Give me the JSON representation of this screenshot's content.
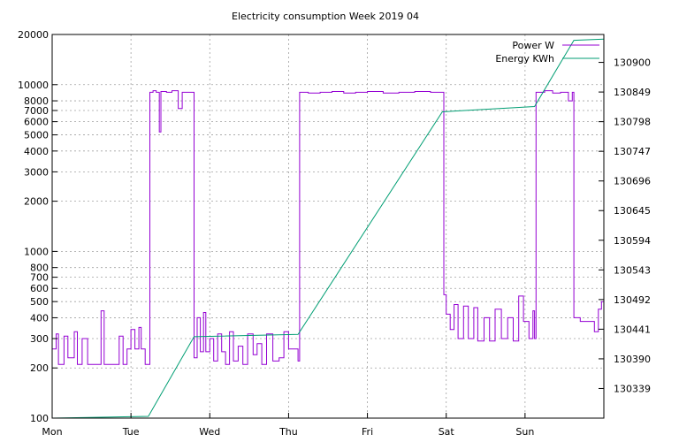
{
  "chart_data": {
    "type": "line",
    "title": "Electricity consumption Week 2019 04",
    "x": {
      "ticks": [
        "Mon",
        "Tue",
        "Wed",
        "Thu",
        "Fri",
        "Sat",
        "Sun"
      ],
      "range_days": [
        0,
        7
      ]
    },
    "y_left": {
      "scale": "log",
      "range": [
        100,
        20000
      ],
      "ticks": [
        100,
        200,
        300,
        400,
        500,
        600,
        700,
        800,
        1000,
        2000,
        3000,
        4000,
        5000,
        6000,
        7000,
        8000,
        10000,
        20000
      ]
    },
    "y_right": {
      "scale": "linear",
      "range": [
        130288,
        130948
      ],
      "ticks": [
        130339,
        130390,
        130441,
        130492,
        130543,
        130594,
        130645,
        130696,
        130747,
        130798,
        130849,
        130900
      ]
    },
    "grid": true,
    "legend_position": "top-right",
    "series": [
      {
        "name": "Power W",
        "axis": "left",
        "color": "#9400d3",
        "points": [
          [
            0.0,
            260
          ],
          [
            0.05,
            320
          ],
          [
            0.08,
            210
          ],
          [
            0.15,
            310
          ],
          [
            0.2,
            230
          ],
          [
            0.28,
            330
          ],
          [
            0.32,
            210
          ],
          [
            0.38,
            300
          ],
          [
            0.45,
            210
          ],
          [
            0.55,
            210
          ],
          [
            0.62,
            440
          ],
          [
            0.66,
            210
          ],
          [
            0.78,
            210
          ],
          [
            0.85,
            310
          ],
          [
            0.9,
            210
          ],
          [
            0.95,
            260
          ],
          [
            1.0,
            340
          ],
          [
            1.05,
            260
          ],
          [
            1.1,
            350
          ],
          [
            1.13,
            260
          ],
          [
            1.18,
            210
          ],
          [
            1.22,
            210
          ],
          [
            1.24,
            9000
          ],
          [
            1.28,
            9200
          ],
          [
            1.32,
            9000
          ],
          [
            1.36,
            5200
          ],
          [
            1.38,
            9100
          ],
          [
            1.45,
            9000
          ],
          [
            1.52,
            9200
          ],
          [
            1.6,
            7200
          ],
          [
            1.65,
            9000
          ],
          [
            1.72,
            9000
          ],
          [
            1.78,
            9000
          ],
          [
            1.8,
            230
          ],
          [
            1.84,
            400
          ],
          [
            1.88,
            250
          ],
          [
            1.92,
            430
          ],
          [
            1.95,
            250
          ],
          [
            2.0,
            300
          ],
          [
            2.05,
            220
          ],
          [
            2.1,
            320
          ],
          [
            2.15,
            250
          ],
          [
            2.2,
            210
          ],
          [
            2.25,
            330
          ],
          [
            2.3,
            220
          ],
          [
            2.36,
            270
          ],
          [
            2.42,
            210
          ],
          [
            2.48,
            320
          ],
          [
            2.55,
            240
          ],
          [
            2.6,
            280
          ],
          [
            2.66,
            210
          ],
          [
            2.72,
            320
          ],
          [
            2.8,
            220
          ],
          [
            2.88,
            230
          ],
          [
            2.94,
            330
          ],
          [
            3.0,
            260
          ],
          [
            3.08,
            260
          ],
          [
            3.12,
            220
          ],
          [
            3.14,
            9000
          ],
          [
            3.25,
            8900
          ],
          [
            3.4,
            9000
          ],
          [
            3.55,
            9100
          ],
          [
            3.7,
            8900
          ],
          [
            3.85,
            9000
          ],
          [
            4.0,
            9100
          ],
          [
            4.2,
            8900
          ],
          [
            4.4,
            9000
          ],
          [
            4.6,
            9100
          ],
          [
            4.8,
            9000
          ],
          [
            4.95,
            9000
          ],
          [
            4.97,
            550
          ],
          [
            5.0,
            420
          ],
          [
            5.05,
            340
          ],
          [
            5.1,
            480
          ],
          [
            5.15,
            300
          ],
          [
            5.22,
            470
          ],
          [
            5.28,
            300
          ],
          [
            5.35,
            460
          ],
          [
            5.4,
            290
          ],
          [
            5.48,
            400
          ],
          [
            5.55,
            290
          ],
          [
            5.62,
            450
          ],
          [
            5.7,
            300
          ],
          [
            5.78,
            400
          ],
          [
            5.85,
            290
          ],
          [
            5.92,
            540
          ],
          [
            5.98,
            380
          ],
          [
            6.05,
            300
          ],
          [
            6.1,
            440
          ],
          [
            6.12,
            300
          ],
          [
            6.14,
            9000
          ],
          [
            6.25,
            9200
          ],
          [
            6.35,
            8900
          ],
          [
            6.45,
            9000
          ],
          [
            6.55,
            8000
          ],
          [
            6.6,
            9000
          ],
          [
            6.62,
            400
          ],
          [
            6.7,
            380
          ],
          [
            6.8,
            380
          ],
          [
            6.88,
            330
          ],
          [
            6.93,
            450
          ],
          [
            6.97,
            500
          ],
          [
            7.0,
            340
          ]
        ]
      },
      {
        "name": "Energy KWh",
        "axis": "right",
        "color": "#009e73",
        "points": [
          [
            0.0,
            130288
          ],
          [
            1.22,
            130291
          ],
          [
            1.8,
            130428
          ],
          [
            3.12,
            130432
          ],
          [
            4.95,
            130815
          ],
          [
            6.12,
            130824
          ],
          [
            6.62,
            130938
          ],
          [
            7.0,
            130940
          ]
        ]
      }
    ]
  }
}
